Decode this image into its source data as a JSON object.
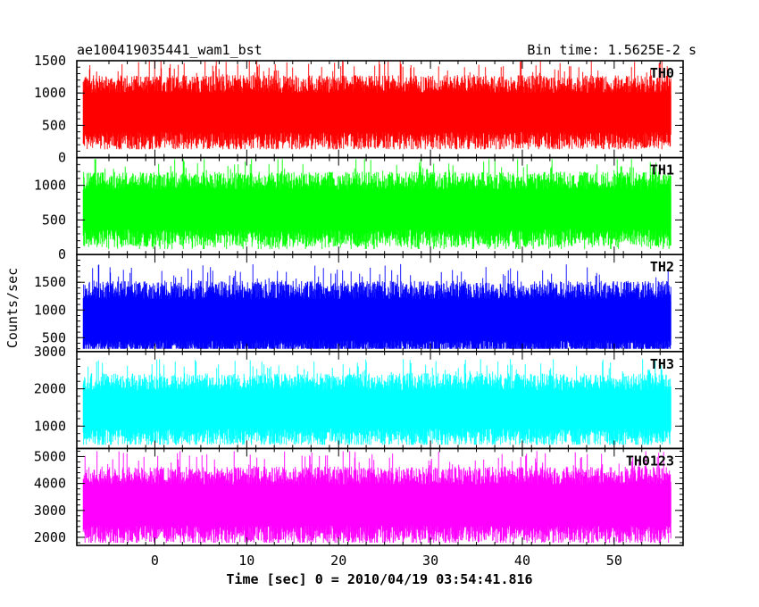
{
  "header": {
    "left_title": "ae100419035441_wam1_bst",
    "right_title": "Bin time: 1.5625E-2 s"
  },
  "chart_data": {
    "type": "line",
    "x_label": "Time [sec] 0 = 2010/04/19 03:54:41.816",
    "y_label": "Counts/sec",
    "x_range": [
      -8.5,
      57.5
    ],
    "x_data_range": [
      -7.8,
      56.2
    ],
    "x_ticks": [
      0,
      10,
      20,
      30,
      40,
      50
    ],
    "x_tick_labels": [
      "0",
      "10",
      "20",
      "30",
      "40",
      "50"
    ],
    "grid": false,
    "panels": [
      {
        "name": "TH0",
        "color": "#ff0000",
        "ylim": [
          0,
          1500
        ],
        "y_ticks": [
          0,
          500,
          1000,
          1500
        ],
        "y_tick_labels": [
          "0",
          "500",
          "1000",
          "1500"
        ],
        "mean": 700,
        "min": 130,
        "max": 1500
      },
      {
        "name": "TH1",
        "color": "#00ff00",
        "ylim": [
          0,
          1400
        ],
        "y_ticks": [
          0,
          500,
          1000
        ],
        "y_tick_labels": [
          "0",
          "500",
          "1000"
        ],
        "mean": 650,
        "min": 80,
        "max": 1380
      },
      {
        "name": "TH2",
        "color": "#0000ff",
        "ylim": [
          250,
          2000
        ],
        "y_ticks": [
          500,
          1000,
          1500
        ],
        "y_tick_labels": [
          "500",
          "1000",
          "1500"
        ],
        "mean": 820,
        "min": 300,
        "max": 1980
      },
      {
        "name": "TH3",
        "color": "#00ffff",
        "ylim": [
          400,
          3000
        ],
        "y_ticks": [
          1000,
          2000,
          3000
        ],
        "y_tick_labels": [
          "1000",
          "2000",
          "3000"
        ],
        "mean": 1450,
        "min": 500,
        "max": 2800
      },
      {
        "name": "TH0123",
        "color": "#ff00ff",
        "ylim": [
          1700,
          5300
        ],
        "y_ticks": [
          2000,
          3000,
          4000,
          5000
        ],
        "y_tick_labels": [
          "2000",
          "3000",
          "4000",
          "5000"
        ],
        "mean": 3200,
        "min": 1800,
        "max": 5200
      }
    ]
  }
}
